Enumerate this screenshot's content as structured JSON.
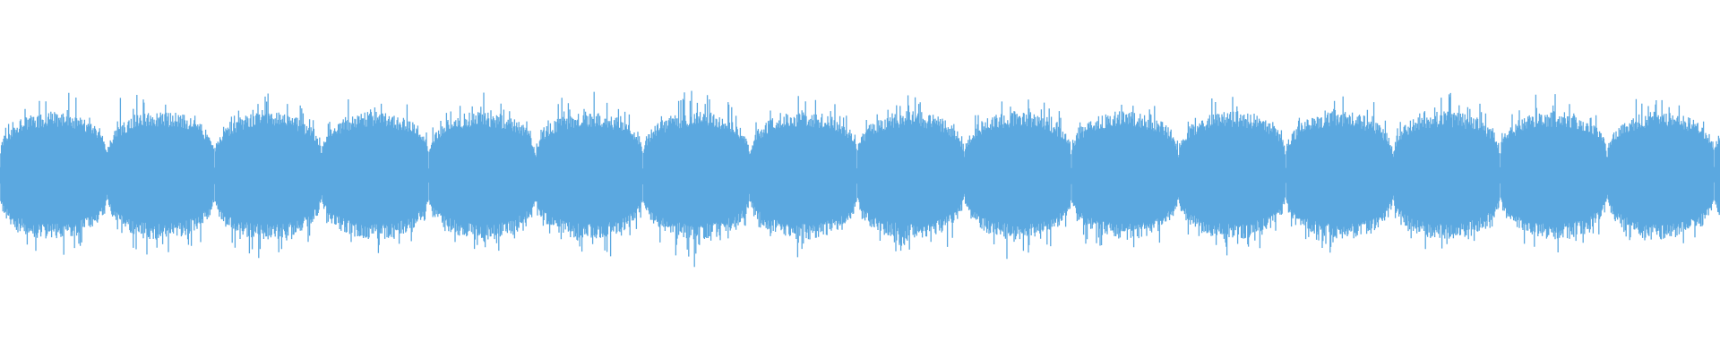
{
  "waveform": {
    "color": "#5ba8e0"
  }
}
